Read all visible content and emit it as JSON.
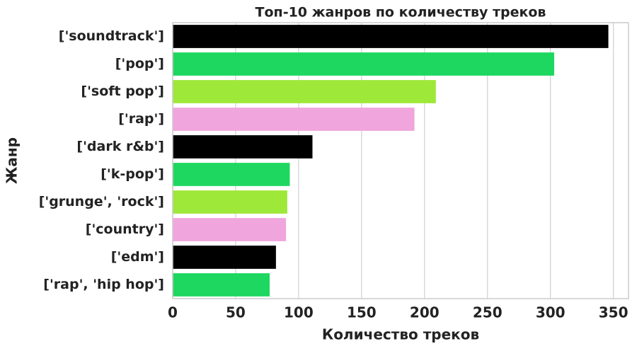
{
  "chart_data": {
    "type": "bar",
    "orientation": "horizontal",
    "title": "Топ-10 жанров по количеству треков",
    "x_label": "Количество треков",
    "y_label": "Жанр",
    "categories": [
      "['soundtrack']",
      "['pop']",
      "['soft pop']",
      "['rap']",
      "['dark r&b']",
      "['k-pop']",
      "['grunge', 'rock']",
      "['country']",
      "['edm']",
      "['rap', 'hip hop']"
    ],
    "values": [
      346,
      303,
      209,
      192,
      111,
      93,
      91,
      90,
      82,
      77
    ],
    "colors": [
      "#000000",
      "#1ed760",
      "#9ee83a",
      "#f0a5dc",
      "#000000",
      "#1ed760",
      "#9ee83a",
      "#f0a5dc",
      "#000000",
      "#1ed760"
    ],
    "xlim": [
      0,
      362
    ],
    "xticks": [
      0,
      50,
      100,
      150,
      200,
      250,
      300,
      350
    ],
    "grid": true
  }
}
